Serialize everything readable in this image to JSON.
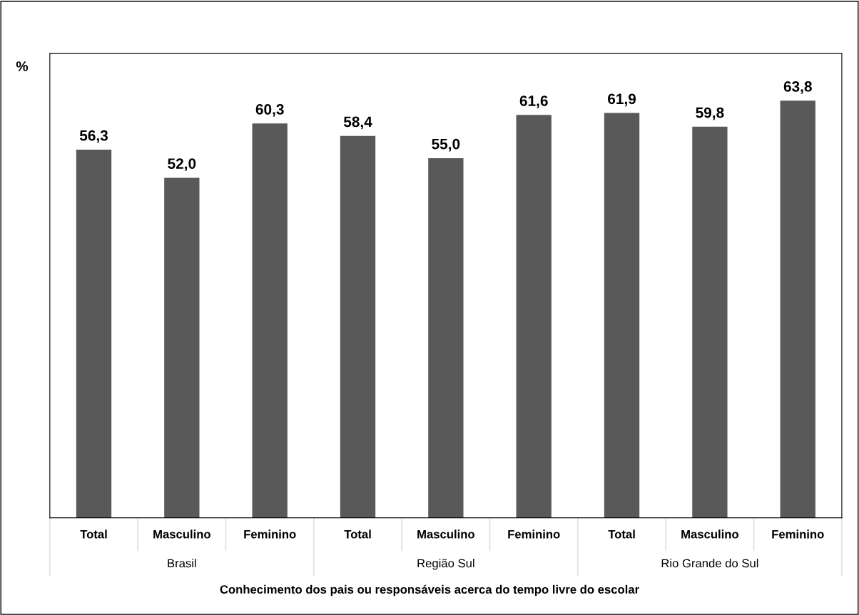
{
  "chart_data": {
    "type": "bar",
    "categories": [
      "Total",
      "Masculino",
      "Feminino",
      "Total",
      "Masculino",
      "Feminino",
      "Total",
      "Masculino",
      "Feminino"
    ],
    "values": [
      56.3,
      52.0,
      60.3,
      58.4,
      55.0,
      61.6,
      61.9,
      59.8,
      63.8
    ],
    "color": "#595959",
    "ylabel": "%",
    "xlabel": "Conhecimento dos pais ou responsáveis acerca do tempo livre do escolar",
    "annotations": [
      "Brasil",
      "Região Sul",
      "Rio Grande do Sul"
    ],
    "value_labels": [
      "56,3",
      "52,0",
      "60,3",
      "58,4",
      "55,0",
      "61,6",
      "61,9",
      "59,8",
      "63,8"
    ],
    "ylim": [
      0,
      71
    ],
    "tick_labels": "x",
    "grid": false,
    "legend": false
  }
}
